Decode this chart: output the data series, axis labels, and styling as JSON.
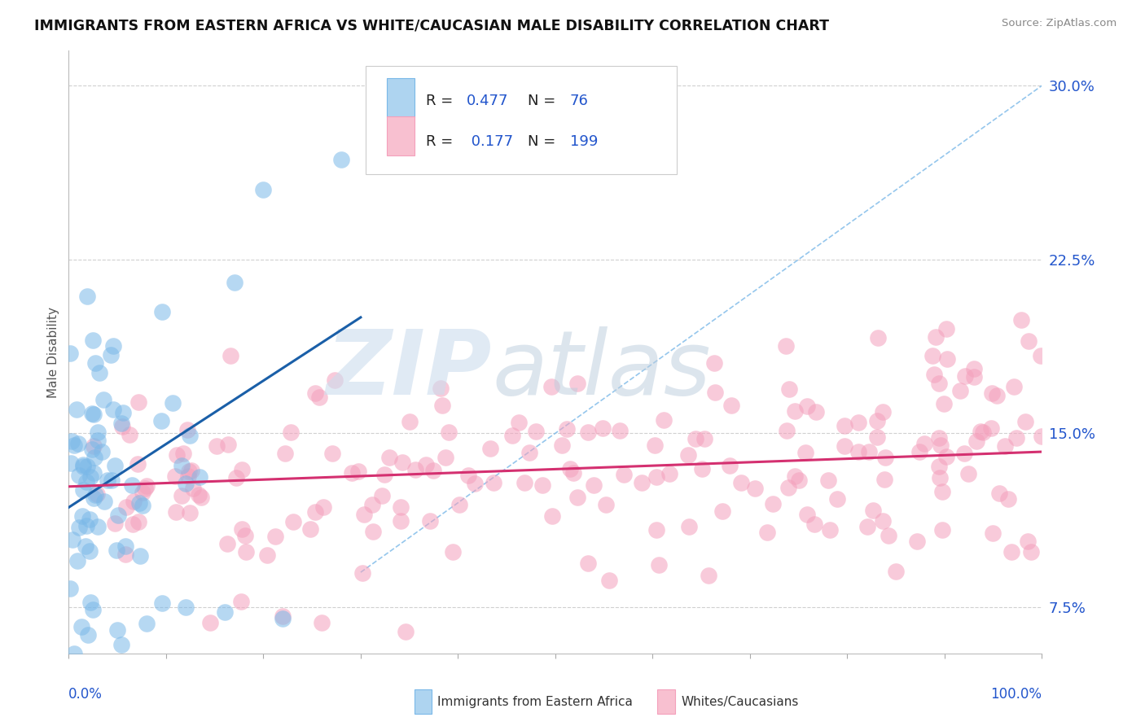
{
  "title": "IMMIGRANTS FROM EASTERN AFRICA VS WHITE/CAUCASIAN MALE DISABILITY CORRELATION CHART",
  "source": "Source: ZipAtlas.com",
  "ylabel": "Male Disability",
  "legend_r1": "R = 0.477",
  "legend_n1": "N =  76",
  "legend_r2": "R =  0.177",
  "legend_n2": "N = 199",
  "blue_line_x": [
    0.0,
    0.3
  ],
  "blue_line_y": [
    0.118,
    0.2
  ],
  "pink_line_x": [
    0.0,
    1.0
  ],
  "pink_line_y": [
    0.127,
    0.142
  ],
  "ref_line_x": [
    0.3,
    1.0
  ],
  "ref_line_y": [
    0.09,
    0.3
  ],
  "xlim": [
    0.0,
    1.0
  ],
  "ylim": [
    0.055,
    0.315
  ],
  "yticks": [
    0.075,
    0.15,
    0.225,
    0.3
  ],
  "ytick_labels": [
    "7.5%",
    "15.0%",
    "22.5%",
    "30.0%"
  ],
  "background_color": "#ffffff",
  "scatter_blue_color": "#7ab8e8",
  "scatter_pink_color": "#f4a0bc",
  "line_blue_color": "#1a5fa8",
  "line_pink_color": "#d43070",
  "ref_line_color": "#7ab8e8",
  "grid_color": "#d0d0d0",
  "text_color": "#2255cc",
  "label_color": "#333333"
}
